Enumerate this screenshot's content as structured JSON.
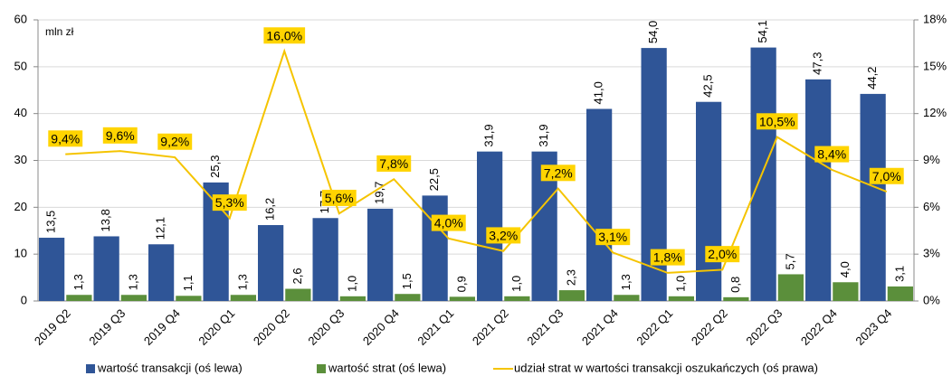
{
  "chart_data": {
    "type": "bar",
    "y_label": "mln zł",
    "categories": [
      "2019 Q2",
      "2019 Q3",
      "2019 Q4",
      "2020 Q1",
      "2020 Q2",
      "2020 Q3",
      "2020 Q4",
      "2021 Q1",
      "2021 Q2",
      "2021 Q3",
      "2021 Q4",
      "2022 Q1",
      "2022 Q2",
      "2022 Q3",
      "2022 Q4",
      "2023 Q4"
    ],
    "series": [
      {
        "name": "wartość transakcji (oś lewa)",
        "type": "bar",
        "color": "#2f5597",
        "values": [
          13.5,
          13.8,
          12.1,
          25.3,
          16.2,
          17.7,
          19.7,
          22.5,
          31.9,
          31.9,
          41.0,
          54.0,
          42.5,
          54.1,
          47.3,
          44.2
        ],
        "value_labels": [
          "13,5",
          "13,8",
          "12,1",
          "25,3",
          "16,2",
          "17,7",
          "19,7",
          "22,5",
          "31,9",
          "31,9",
          "41,0",
          "54,0",
          "42,5",
          "54,1",
          "47,3",
          "44,2"
        ]
      },
      {
        "name": "wartość strat (oś lewa)",
        "type": "bar",
        "color": "#5b8f3b",
        "values": [
          1.3,
          1.3,
          1.1,
          1.3,
          2.6,
          1.0,
          1.5,
          0.9,
          1.0,
          2.3,
          1.3,
          1.0,
          0.8,
          5.7,
          4.0,
          3.1
        ],
        "value_labels": [
          "1,3",
          "1,3",
          "1,1",
          "1,3",
          "2,6",
          "1,0",
          "1,5",
          "0,9",
          "1,0",
          "2,3",
          "1,3",
          "1,0",
          "0,8",
          "5,7",
          "4,0",
          "3,1"
        ]
      },
      {
        "name": "udział strat w wartości transakcji oszukańczych (oś prawa)",
        "type": "line",
        "axis": "y2",
        "color": "#f5c400",
        "values": [
          9.4,
          9.6,
          9.2,
          5.3,
          16.0,
          5.6,
          7.8,
          4.0,
          3.2,
          7.2,
          3.1,
          1.8,
          2.0,
          10.5,
          8.4,
          7.0
        ],
        "value_labels": [
          "9,4%",
          "9,6%",
          "9,2%",
          "5,3%",
          "16,0%",
          "5,6%",
          "7,8%",
          "4,0%",
          "3,2%",
          "7,2%",
          "3,1%",
          "1,8%",
          "2,0%",
          "10,5%",
          "8,4%",
          "7,0%"
        ]
      }
    ],
    "ylim": [
      0,
      60
    ],
    "yticks": [
      0,
      10,
      20,
      30,
      40,
      50,
      60
    ],
    "y2lim": [
      0,
      18
    ],
    "y2ticks": [
      {
        "value": 0,
        "label": "0%"
      },
      {
        "value": 3,
        "label": "3%"
      },
      {
        "value": 6,
        "label": "6%"
      },
      {
        "value": 9,
        "label": "9%"
      },
      {
        "value": 12,
        "label": "12%"
      },
      {
        "value": 15,
        "label": "15%"
      },
      {
        "value": 18,
        "label": "18%"
      }
    ],
    "grid": true,
    "legend": "bottom"
  }
}
